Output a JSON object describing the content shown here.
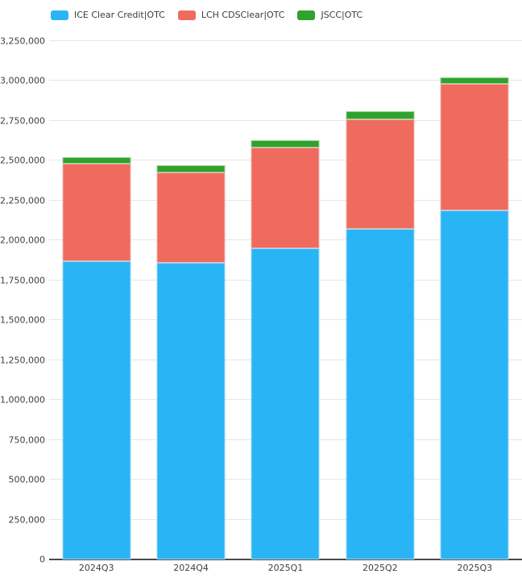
{
  "legend": {
    "items": [
      {
        "label": "ICE Clear Credit|OTC",
        "color": "#29b5f5"
      },
      {
        "label": "LCH CDSClear|OTC",
        "color": "#ee6b5e"
      },
      {
        "label": "JSCC|OTC",
        "color": "#2fa32d"
      }
    ]
  },
  "chart_data": {
    "type": "bar",
    "stacked": true,
    "title": "",
    "xlabel": "",
    "ylabel": "",
    "categories": [
      "2024Q3",
      "2024Q4",
      "2025Q1",
      "2025Q2",
      "2025Q3"
    ],
    "series": [
      {
        "name": "ICE Clear Credit|OTC",
        "color": "#29b5f5",
        "values": [
          1870000,
          1860000,
          1950000,
          2070000,
          2190000
        ]
      },
      {
        "name": "LCH CDSClear|OTC",
        "color": "#ee6b5e",
        "values": [
          610000,
          565000,
          635000,
          690000,
          790000
        ]
      },
      {
        "name": "JSCC|OTC",
        "color": "#2fa32d",
        "values": [
          40000,
          45000,
          45000,
          50000,
          45000
        ]
      }
    ],
    "stack_totals": [
      2520000,
      2470000,
      2630000,
      2810000,
      3025000
    ],
    "ylim": [
      0,
      3250000
    ],
    "ytick_step": 250000,
    "yticks": [
      "0",
      "250,000",
      "500,000",
      "750,000",
      "1,000,000",
      "1,250,000",
      "1,500,000",
      "1,750,000",
      "2,000,000",
      "2,250,000",
      "2,500,000",
      "2,750,000",
      "3,000,000",
      "3,250,000"
    ],
    "grid": true,
    "legend_position": "top-left",
    "axis_color": "#4a4a4a",
    "gridline_color": "#e6e6e6",
    "tick_label_color": "#404040"
  }
}
